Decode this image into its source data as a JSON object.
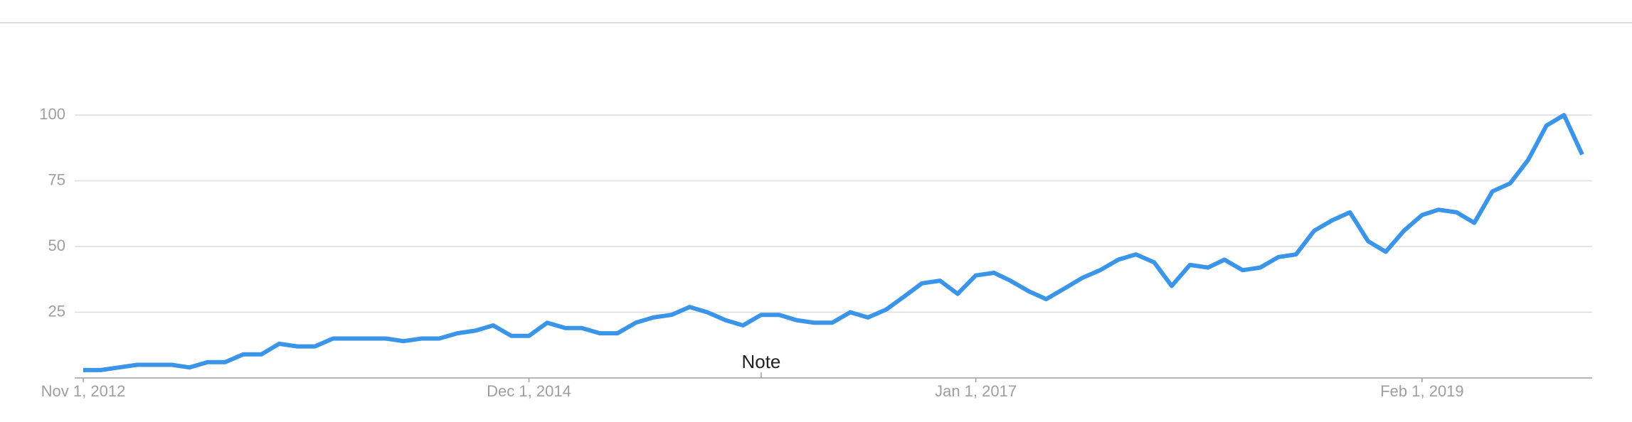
{
  "chart_data": {
    "type": "line",
    "x": [
      "2012-11-01",
      "2012-12-01",
      "2013-01-01",
      "2013-02-01",
      "2013-03-01",
      "2013-04-01",
      "2013-05-01",
      "2013-06-01",
      "2013-07-01",
      "2013-08-01",
      "2013-09-01",
      "2013-10-01",
      "2013-11-01",
      "2013-12-01",
      "2014-01-01",
      "2014-02-01",
      "2014-03-01",
      "2014-04-01",
      "2014-05-01",
      "2014-06-01",
      "2014-07-01",
      "2014-08-01",
      "2014-09-01",
      "2014-10-01",
      "2014-11-01",
      "2014-12-01",
      "2015-01-01",
      "2015-02-01",
      "2015-03-01",
      "2015-04-01",
      "2015-05-01",
      "2015-06-01",
      "2015-07-01",
      "2015-08-01",
      "2015-09-01",
      "2015-10-01",
      "2015-11-01",
      "2015-12-01",
      "2016-01-01",
      "2016-02-01",
      "2016-03-01",
      "2016-04-01",
      "2016-05-01",
      "2016-06-01",
      "2016-07-01",
      "2016-08-01",
      "2016-09-01",
      "2016-10-01",
      "2016-11-01",
      "2016-12-01",
      "2017-01-01",
      "2017-02-01",
      "2017-03-01",
      "2017-04-01",
      "2017-05-01",
      "2017-06-01",
      "2017-07-01",
      "2017-08-01",
      "2017-09-01",
      "2017-10-01",
      "2017-11-01",
      "2017-12-01",
      "2018-01-01",
      "2018-02-01",
      "2018-03-01",
      "2018-04-01",
      "2018-05-01",
      "2018-06-01",
      "2018-07-01",
      "2018-08-01",
      "2018-09-01",
      "2018-10-01",
      "2018-11-01",
      "2018-12-01",
      "2019-01-01",
      "2019-02-01",
      "2019-03-01",
      "2019-04-01",
      "2019-05-01",
      "2019-06-01",
      "2019-07-01",
      "2019-08-01",
      "2019-09-01",
      "2019-10-01",
      "2019-11-01"
    ],
    "series": [
      {
        "color": "#3a94e8",
        "values": [
          3,
          3,
          4,
          5,
          5,
          5,
          4,
          6,
          6,
          9,
          9,
          13,
          12,
          12,
          15,
          15,
          15,
          15,
          14,
          15,
          15,
          17,
          18,
          20,
          16,
          16,
          21,
          19,
          19,
          17,
          17,
          21,
          23,
          24,
          27,
          25,
          22,
          20,
          24,
          24,
          22,
          21,
          21,
          25,
          23,
          26,
          31,
          36,
          37,
          32,
          39,
          40,
          37,
          33,
          30,
          34,
          38,
          41,
          45,
          47,
          44,
          35,
          43,
          42,
          45,
          41,
          42,
          46,
          47,
          56,
          60,
          63,
          52,
          48,
          56,
          62,
          64,
          63,
          59,
          71,
          74,
          83,
          96,
          100,
          85
        ]
      }
    ],
    "ylim": [
      0,
      100
    ],
    "yticks": [
      25,
      50,
      75,
      100
    ],
    "grid": true,
    "xticks": [
      {
        "value": "2012-11-01",
        "label": "Nov 1, 2012"
      },
      {
        "value": "2014-12-01",
        "label": "Dec 1, 2014"
      },
      {
        "value": "2017-01-01",
        "label": "Jan 1, 2017"
      },
      {
        "value": "2019-02-01",
        "label": "Feb 1, 2019"
      }
    ],
    "annotations": [
      {
        "x": "2016-01-01",
        "text": "Note"
      }
    ]
  }
}
